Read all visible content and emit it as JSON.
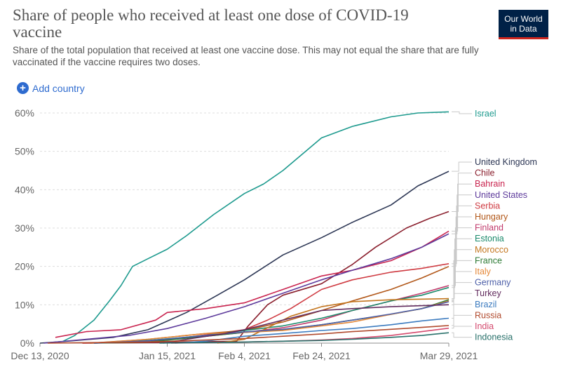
{
  "title": "Share of people who received at least one dose of COVID-19 vaccine",
  "subtitle": "Share of the total population that received at least one vaccine dose. This may not equal the share that are fully vaccinated if the vaccine requires two doses.",
  "logo": {
    "line1": "Our World",
    "line2": "in Data"
  },
  "add_country": {
    "label": "Add country",
    "icon": "plus-circle-icon"
  },
  "chart_data": {
    "type": "line",
    "title": "Share of people who received at least one dose of COVID-19 vaccine",
    "xlabel": "",
    "ylabel": "",
    "x_range": [
      "2020-12-13",
      "2021-03-29"
    ],
    "ylim": [
      0,
      60
    ],
    "grid": "horizontal dashed",
    "legend": "right (line-end labels)",
    "x_ticks": [
      {
        "date": "2020-12-13",
        "label": "Dec 13, 2020"
      },
      {
        "date": "2021-01-15",
        "label": "Jan 15, 2021"
      },
      {
        "date": "2021-02-04",
        "label": "Feb 4, 2021"
      },
      {
        "date": "2021-02-24",
        "label": "Feb 24, 2021"
      },
      {
        "date": "2021-03-29",
        "label": "Mar 29, 2021"
      }
    ],
    "y_ticks": [
      {
        "value": 0,
        "label": "0%"
      },
      {
        "value": 10,
        "label": "10%"
      },
      {
        "value": 20,
        "label": "20%"
      },
      {
        "value": 30,
        "label": "30%"
      },
      {
        "value": 40,
        "label": "40%"
      },
      {
        "value": 50,
        "label": "50%"
      },
      {
        "value": 60,
        "label": "60%"
      }
    ],
    "series": [
      {
        "name": "Israel",
        "color": "#1d9a8e",
        "points": [
          [
            "2020-12-19",
            0.5
          ],
          [
            "2020-12-22",
            2
          ],
          [
            "2020-12-27",
            6
          ],
          [
            "2020-12-31",
            11
          ],
          [
            "2021-01-03",
            15
          ],
          [
            "2021-01-06",
            20
          ],
          [
            "2021-01-10",
            22
          ],
          [
            "2021-01-15",
            24.5
          ],
          [
            "2021-01-20",
            28
          ],
          [
            "2021-01-27",
            33.5
          ],
          [
            "2021-02-04",
            39
          ],
          [
            "2021-02-09",
            41.5
          ],
          [
            "2021-02-14",
            45
          ],
          [
            "2021-02-24",
            53.5
          ],
          [
            "2021-03-04",
            56.5
          ],
          [
            "2021-03-14",
            59
          ],
          [
            "2021-03-21",
            60
          ],
          [
            "2021-03-29",
            60.3
          ]
        ]
      },
      {
        "name": "United Kingdom",
        "color": "#2c3654",
        "points": [
          [
            "2020-12-13",
            0
          ],
          [
            "2020-12-20",
            0.5
          ],
          [
            "2021-01-01",
            1.5
          ],
          [
            "2021-01-10",
            3.5
          ],
          [
            "2021-01-20",
            8
          ],
          [
            "2021-01-28",
            12.5
          ],
          [
            "2021-02-04",
            16.5
          ],
          [
            "2021-02-14",
            23
          ],
          [
            "2021-02-24",
            27.5
          ],
          [
            "2021-03-04",
            31.5
          ],
          [
            "2021-03-14",
            36
          ],
          [
            "2021-03-21",
            41
          ],
          [
            "2021-03-29",
            44.8
          ]
        ]
      },
      {
        "name": "Chile",
        "color": "#8a1f2d",
        "points": [
          [
            "2020-12-24",
            0
          ],
          [
            "2021-01-15",
            0.2
          ],
          [
            "2021-02-02",
            0.5
          ],
          [
            "2021-02-05",
            4.5
          ],
          [
            "2021-02-10",
            10
          ],
          [
            "2021-02-14",
            12.5
          ],
          [
            "2021-02-24",
            15.5
          ],
          [
            "2021-03-04",
            20.5
          ],
          [
            "2021-03-10",
            25
          ],
          [
            "2021-03-18",
            30
          ],
          [
            "2021-03-24",
            32.5
          ],
          [
            "2021-03-29",
            34.3
          ]
        ]
      },
      {
        "name": "Bahrain",
        "color": "#c9244f",
        "points": [
          [
            "2020-12-17",
            1.5
          ],
          [
            "2020-12-25",
            3
          ],
          [
            "2021-01-03",
            3.5
          ],
          [
            "2021-01-12",
            6
          ],
          [
            "2021-01-15",
            8
          ],
          [
            "2021-01-25",
            9
          ],
          [
            "2021-02-04",
            10.5
          ],
          [
            "2021-02-14",
            14
          ],
          [
            "2021-02-24",
            17.5
          ],
          [
            "2021-03-04",
            19
          ],
          [
            "2021-03-14",
            21.5
          ],
          [
            "2021-03-22",
            25
          ],
          [
            "2021-03-29",
            29.2
          ]
        ]
      },
      {
        "name": "United States",
        "color": "#5d3a9b",
        "points": [
          [
            "2020-12-14",
            0
          ],
          [
            "2020-12-25",
            1
          ],
          [
            "2021-01-05",
            2
          ],
          [
            "2021-01-15",
            3.8
          ],
          [
            "2021-01-25",
            6.5
          ],
          [
            "2021-02-04",
            9.5
          ],
          [
            "2021-02-14",
            13
          ],
          [
            "2021-02-24",
            16.5
          ],
          [
            "2021-03-04",
            19
          ],
          [
            "2021-03-14",
            22
          ],
          [
            "2021-03-22",
            25
          ],
          [
            "2021-03-29",
            28.5
          ]
        ]
      },
      {
        "name": "Serbia",
        "color": "#cf3b42",
        "points": [
          [
            "2020-12-24",
            0
          ],
          [
            "2021-01-10",
            0.5
          ],
          [
            "2021-01-20",
            1.5
          ],
          [
            "2021-02-04",
            3.5
          ],
          [
            "2021-02-10",
            6
          ],
          [
            "2021-02-16",
            9
          ],
          [
            "2021-02-24",
            14
          ],
          [
            "2021-03-04",
            16.5
          ],
          [
            "2021-03-14",
            18.5
          ],
          [
            "2021-03-22",
            19.5
          ],
          [
            "2021-03-29",
            20.7
          ]
        ]
      },
      {
        "name": "Hungary",
        "color": "#b2581a",
        "points": [
          [
            "2020-12-26",
            0
          ],
          [
            "2021-01-10",
            1
          ],
          [
            "2021-01-25",
            2.5
          ],
          [
            "2021-02-04",
            3.3
          ],
          [
            "2021-02-14",
            5.5
          ],
          [
            "2021-02-24",
            8.5
          ],
          [
            "2021-03-04",
            11
          ],
          [
            "2021-03-14",
            14
          ],
          [
            "2021-03-22",
            17
          ],
          [
            "2021-03-29",
            20
          ]
        ]
      },
      {
        "name": "Finland",
        "color": "#c13b6c",
        "points": [
          [
            "2020-12-27",
            0
          ],
          [
            "2021-01-10",
            0.5
          ],
          [
            "2021-01-25",
            1.8
          ],
          [
            "2021-02-04",
            2.8
          ],
          [
            "2021-02-14",
            4
          ],
          [
            "2021-02-24",
            6
          ],
          [
            "2021-03-04",
            8.5
          ],
          [
            "2021-03-14",
            11
          ],
          [
            "2021-03-22",
            13
          ],
          [
            "2021-03-29",
            15
          ]
        ]
      },
      {
        "name": "Estonia",
        "color": "#1b8a6b",
        "points": [
          [
            "2020-12-27",
            0
          ],
          [
            "2021-01-10",
            0.7
          ],
          [
            "2021-01-25",
            2
          ],
          [
            "2021-02-04",
            3.3
          ],
          [
            "2021-02-14",
            4.5
          ],
          [
            "2021-02-24",
            6.5
          ],
          [
            "2021-03-04",
            8.5
          ],
          [
            "2021-03-14",
            11
          ],
          [
            "2021-03-22",
            12.5
          ],
          [
            "2021-03-29",
            14.5
          ]
        ]
      },
      {
        "name": "Morocco",
        "color": "#c3751d",
        "points": [
          [
            "2021-01-28",
            0
          ],
          [
            "2021-02-04",
            1
          ],
          [
            "2021-02-10",
            4
          ],
          [
            "2021-02-16",
            7
          ],
          [
            "2021-02-24",
            9.5
          ],
          [
            "2021-03-04",
            10.8
          ],
          [
            "2021-03-14",
            11.3
          ],
          [
            "2021-03-29",
            11.6
          ]
        ]
      },
      {
        "name": "France",
        "color": "#2d7a34",
        "points": [
          [
            "2020-12-27",
            0
          ],
          [
            "2021-01-10",
            0.3
          ],
          [
            "2021-01-25",
            1.8
          ],
          [
            "2021-02-04",
            2.8
          ],
          [
            "2021-02-14",
            3.5
          ],
          [
            "2021-02-24",
            4.8
          ],
          [
            "2021-03-04",
            6
          ],
          [
            "2021-03-14",
            7.5
          ],
          [
            "2021-03-22",
            9
          ],
          [
            "2021-03-29",
            11.3
          ]
        ]
      },
      {
        "name": "Italy",
        "color": "#e5893a",
        "points": [
          [
            "2020-12-27",
            0
          ],
          [
            "2021-01-10",
            1
          ],
          [
            "2021-01-25",
            2.5
          ],
          [
            "2021-02-04",
            2.8
          ],
          [
            "2021-02-14",
            3.3
          ],
          [
            "2021-02-24",
            4.5
          ],
          [
            "2021-03-04",
            5.5
          ],
          [
            "2021-03-14",
            7.5
          ],
          [
            "2021-03-22",
            9
          ],
          [
            "2021-03-29",
            11
          ]
        ]
      },
      {
        "name": "Germany",
        "color": "#4d5fa8",
        "points": [
          [
            "2020-12-27",
            0
          ],
          [
            "2021-01-10",
            0.6
          ],
          [
            "2021-01-25",
            2
          ],
          [
            "2021-02-04",
            2.9
          ],
          [
            "2021-02-14",
            3.6
          ],
          [
            "2021-02-24",
            4.8
          ],
          [
            "2021-03-04",
            6
          ],
          [
            "2021-03-14",
            7.6
          ],
          [
            "2021-03-22",
            9
          ],
          [
            "2021-03-29",
            10.8
          ]
        ]
      },
      {
        "name": "Turkey",
        "color": "#622c5e",
        "points": [
          [
            "2021-01-14",
            0
          ],
          [
            "2021-01-20",
            1
          ],
          [
            "2021-01-30",
            2.5
          ],
          [
            "2021-02-04",
            3.5
          ],
          [
            "2021-02-14",
            6
          ],
          [
            "2021-02-24",
            8.5
          ],
          [
            "2021-03-04",
            9
          ],
          [
            "2021-03-14",
            9.5
          ],
          [
            "2021-03-29",
            10
          ]
        ]
      },
      {
        "name": "Brazil",
        "color": "#3c7bbf",
        "points": [
          [
            "2021-01-17",
            0
          ],
          [
            "2021-01-25",
            0.5
          ],
          [
            "2021-02-04",
            1.8
          ],
          [
            "2021-02-14",
            2.5
          ],
          [
            "2021-02-24",
            3.3
          ],
          [
            "2021-03-04",
            3.8
          ],
          [
            "2021-03-14",
            4.8
          ],
          [
            "2021-03-22",
            5.8
          ],
          [
            "2021-03-29",
            6.5
          ]
        ]
      },
      {
        "name": "Russia",
        "color": "#b14a2d",
        "points": [
          [
            "2020-12-15",
            0
          ],
          [
            "2021-01-10",
            0.3
          ],
          [
            "2021-01-25",
            0.8
          ],
          [
            "2021-02-04",
            1.2
          ],
          [
            "2021-02-14",
            1.8
          ],
          [
            "2021-02-24",
            2.4
          ],
          [
            "2021-03-04",
            3
          ],
          [
            "2021-03-14",
            3.6
          ],
          [
            "2021-03-22",
            4.1
          ],
          [
            "2021-03-29",
            4.6
          ]
        ]
      },
      {
        "name": "India",
        "color": "#d44a6e",
        "points": [
          [
            "2021-01-16",
            0
          ],
          [
            "2021-02-04",
            0.3
          ],
          [
            "2021-02-14",
            0.5
          ],
          [
            "2021-02-24",
            0.8
          ],
          [
            "2021-03-04",
            1.2
          ],
          [
            "2021-03-14",
            2
          ],
          [
            "2021-03-22",
            3
          ],
          [
            "2021-03-29",
            3.9
          ]
        ]
      },
      {
        "name": "Indonesia",
        "color": "#28706a",
        "points": [
          [
            "2021-01-13",
            0
          ],
          [
            "2021-02-04",
            0.3
          ],
          [
            "2021-02-14",
            0.5
          ],
          [
            "2021-02-24",
            0.7
          ],
          [
            "2021-03-04",
            1
          ],
          [
            "2021-03-14",
            1.5
          ],
          [
            "2021-03-22",
            2
          ],
          [
            "2021-03-29",
            2.7
          ]
        ]
      }
    ]
  }
}
